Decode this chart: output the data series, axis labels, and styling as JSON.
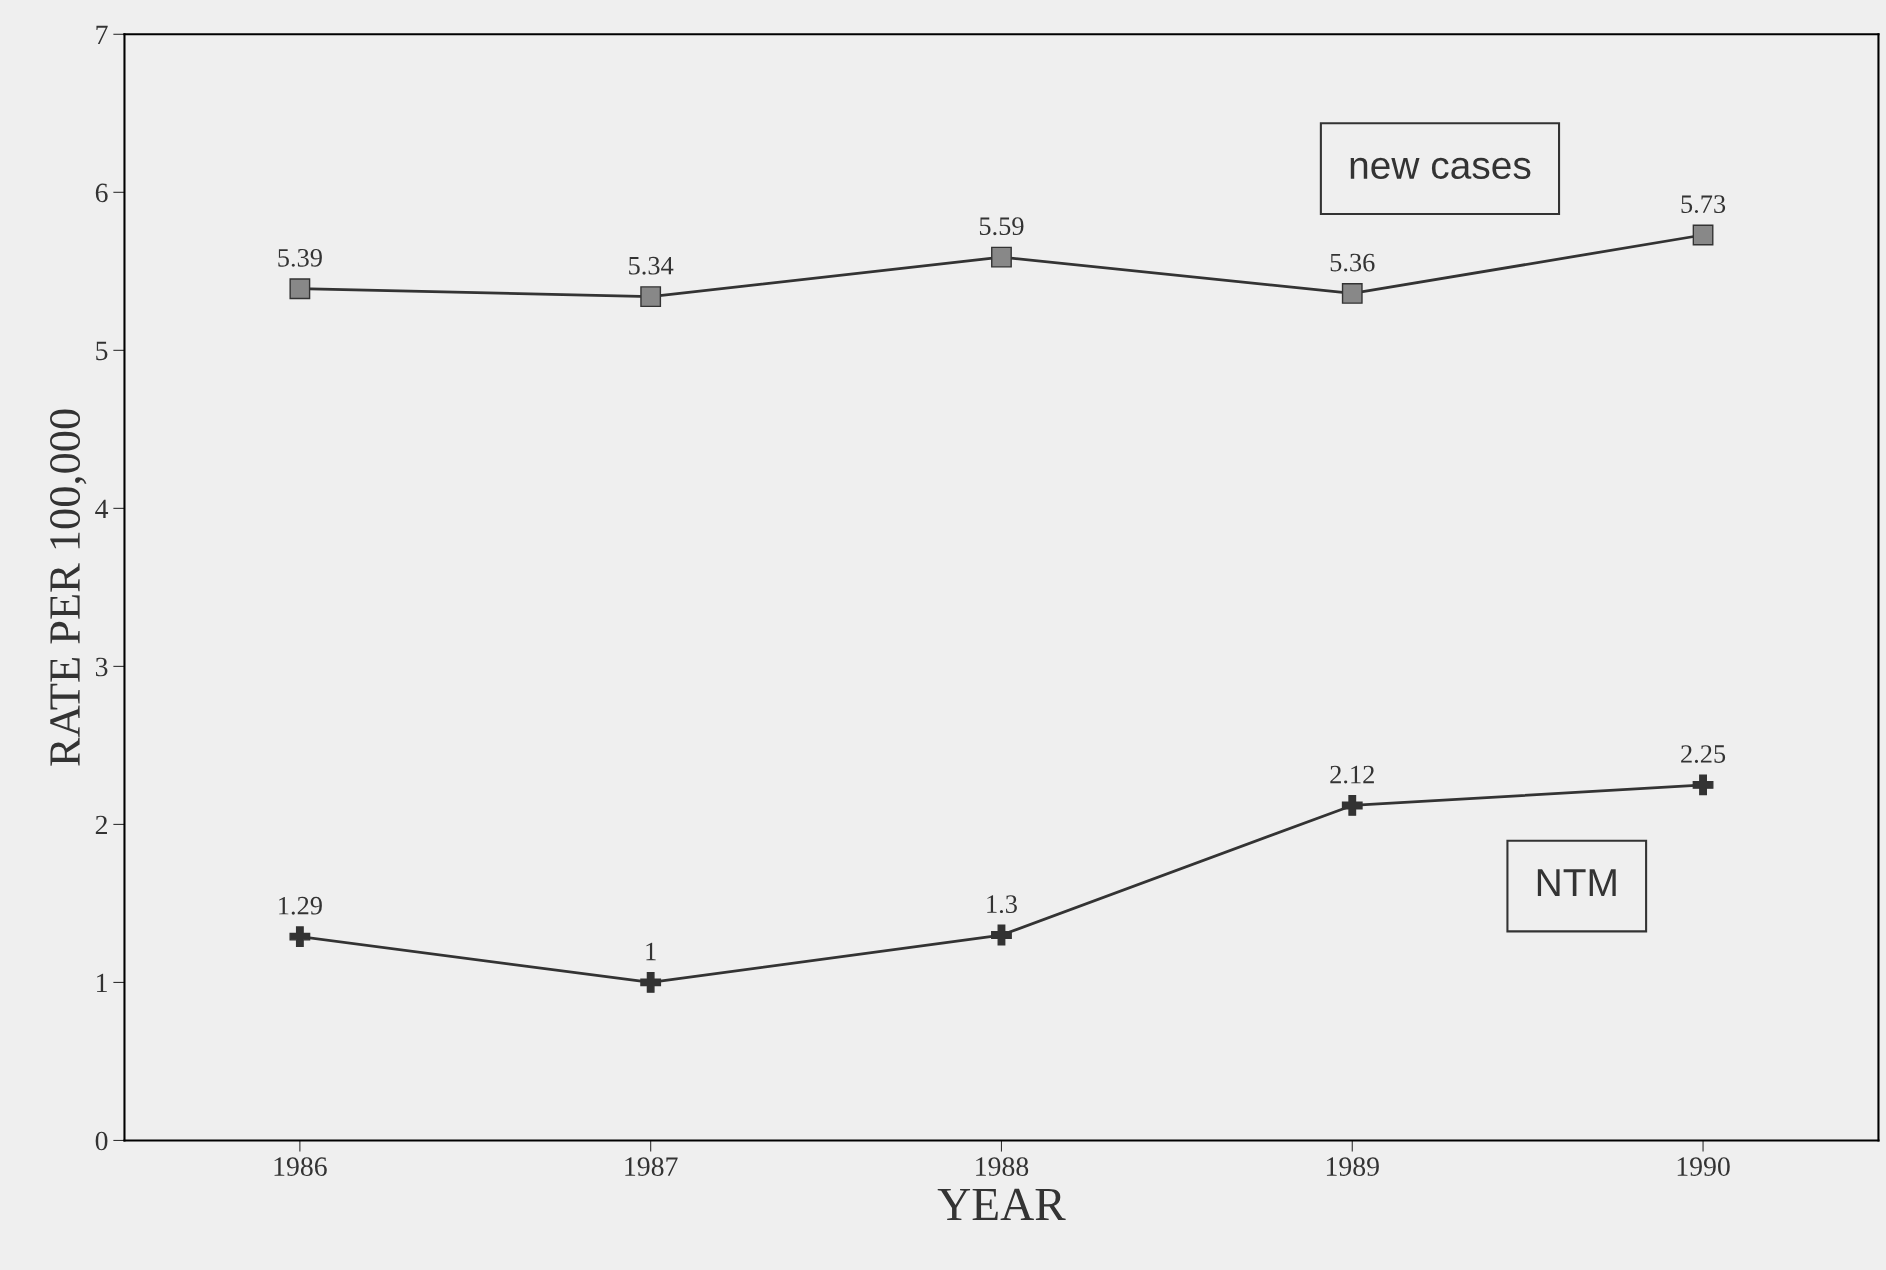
{
  "chart_data": {
    "type": "line",
    "xlabel": "YEAR",
    "ylabel": "RATE PER 100,000",
    "categories": [
      "1986",
      "1987",
      "1988",
      "1989",
      "1990"
    ],
    "series": [
      {
        "name": "new cases",
        "color": "#333333",
        "marker": "square",
        "values": [
          5.39,
          5.34,
          5.59,
          5.36,
          5.73
        ]
      },
      {
        "name": "NTM",
        "color": "#333333",
        "marker": "cross",
        "values": [
          1.29,
          1,
          1.3,
          2.12,
          2.25
        ]
      }
    ],
    "ylim": [
      0,
      7
    ],
    "yticks": [
      0,
      1,
      2,
      3,
      4,
      5,
      6,
      7
    ],
    "data_labels": true,
    "grid": false,
    "legend": false,
    "line_style": "solid"
  }
}
